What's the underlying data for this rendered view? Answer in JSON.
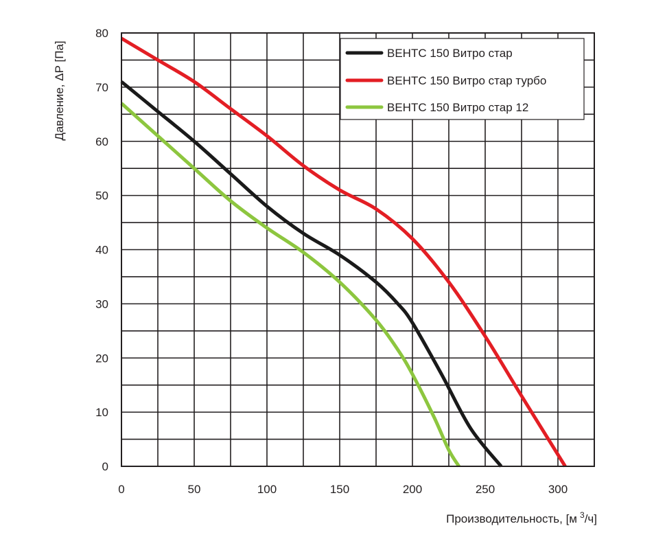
{
  "chart_data": {
    "type": "line",
    "title": "",
    "xlabel": "Производительность, [м",
    "xlabel_sup": "3",
    "xlabel_end": "/ч]",
    "ylabel": "Давление, ΔР [Па]",
    "xlim": [
      0,
      325
    ],
    "ylim": [
      0,
      80
    ],
    "x_ticks": [
      0,
      50,
      100,
      150,
      200,
      250,
      300
    ],
    "y_ticks": [
      0,
      10,
      20,
      30,
      40,
      50,
      60,
      70,
      80
    ],
    "x_minor_step": 25,
    "y_minor_step": 5,
    "grid": true,
    "legend_position": "top-right",
    "series": [
      {
        "name": "ВЕНТС 150 Витро стар",
        "color": "#1a1a1a",
        "points": [
          [
            0,
            71
          ],
          [
            25,
            65.5
          ],
          [
            50,
            60
          ],
          [
            75,
            54
          ],
          [
            100,
            48
          ],
          [
            125,
            43
          ],
          [
            150,
            39
          ],
          [
            175,
            34
          ],
          [
            190,
            30
          ],
          [
            200,
            26.5
          ],
          [
            220,
            17
          ],
          [
            240,
            7
          ],
          [
            261,
            0
          ]
        ]
      },
      {
        "name": "ВЕНТС 150 Витро стар турбо",
        "color": "#e31e24",
        "points": [
          [
            0,
            79
          ],
          [
            25,
            75
          ],
          [
            50,
            71
          ],
          [
            75,
            66
          ],
          [
            100,
            61
          ],
          [
            125,
            55.5
          ],
          [
            150,
            51
          ],
          [
            175,
            47.5
          ],
          [
            200,
            42
          ],
          [
            225,
            34
          ],
          [
            250,
            24
          ],
          [
            275,
            13
          ],
          [
            305,
            0
          ]
        ]
      },
      {
        "name": "ВЕНТС 150 Витро стар 12",
        "color": "#8dc63f",
        "points": [
          [
            0,
            67
          ],
          [
            25,
            61
          ],
          [
            50,
            55
          ],
          [
            75,
            49
          ],
          [
            100,
            44
          ],
          [
            125,
            39.5
          ],
          [
            150,
            34
          ],
          [
            175,
            27
          ],
          [
            190,
            21.5
          ],
          [
            200,
            17
          ],
          [
            215,
            9
          ],
          [
            225,
            3
          ],
          [
            232,
            0
          ]
        ]
      }
    ]
  }
}
